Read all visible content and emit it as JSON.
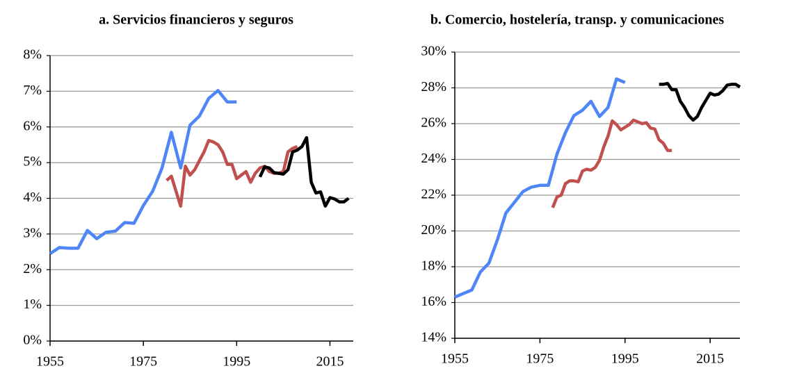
{
  "chart_data": [
    {
      "type": "line",
      "title": "a. Servicios financieros y seguros",
      "xlim": [
        1955,
        2020
      ],
      "xticks": [
        1955,
        1975,
        1995,
        2015
      ],
      "ylim": [
        0,
        8
      ],
      "yticks": [
        {
          "value": 0,
          "label": "0%"
        },
        {
          "value": 1,
          "label": "1%"
        },
        {
          "value": 2,
          "label": "2%"
        },
        {
          "value": 3,
          "label": "3%"
        },
        {
          "value": 4,
          "label": "4%"
        },
        {
          "value": 5,
          "label": "5%"
        },
        {
          "value": 6,
          "label": "6%"
        },
        {
          "value": 7,
          "label": "7%"
        },
        {
          "value": 8,
          "label": "8%"
        }
      ],
      "grid": true,
      "series": [
        {
          "color": "#4f86f7",
          "x": [
            1955,
            1957,
            1959,
            1961,
            1963,
            1965,
            1967,
            1969,
            1971,
            1973,
            1975,
            1977,
            1979,
            1981,
            1983,
            1985,
            1987,
            1989,
            1991,
            1993,
            1995
          ],
          "values": [
            2.45,
            2.62,
            2.6,
            2.6,
            3.1,
            2.87,
            3.05,
            3.08,
            3.32,
            3.3,
            3.8,
            4.2,
            4.85,
            5.85,
            4.85,
            6.05,
            6.3,
            6.8,
            7.02,
            6.7,
            6.7
          ]
        },
        {
          "color": "#c0504d",
          "x": [
            1980,
            1981,
            1982,
            1983,
            1984,
            1985,
            1986,
            1987,
            1988,
            1989,
            1990,
            1991,
            1992,
            1993,
            1994,
            1995,
            1996,
            1997,
            1998,
            1999,
            2000,
            2001,
            2002,
            2003,
            2004,
            2005,
            2006,
            2007,
            2008
          ],
          "values": [
            4.5,
            4.62,
            4.2,
            3.78,
            4.9,
            4.65,
            4.8,
            5.05,
            5.3,
            5.62,
            5.58,
            5.5,
            5.3,
            4.95,
            4.95,
            4.55,
            4.65,
            4.75,
            4.45,
            4.7,
            4.85,
            4.9,
            4.75,
            4.7,
            4.7,
            4.75,
            5.3,
            5.4,
            5.45
          ]
        },
        {
          "color": "#000000",
          "x": [
            2000,
            2001,
            2002,
            2003,
            2004,
            2005,
            2006,
            2007,
            2008,
            2009,
            2010,
            2011,
            2012,
            2013,
            2014,
            2015,
            2016,
            2017,
            2018,
            2019
          ],
          "values": [
            4.6,
            4.88,
            4.85,
            4.72,
            4.7,
            4.68,
            4.8,
            5.3,
            5.35,
            5.45,
            5.7,
            4.45,
            4.15,
            4.18,
            3.78,
            4.02,
            3.98,
            3.9,
            3.9,
            4.0
          ]
        }
      ]
    },
    {
      "type": "line",
      "title": "b. Comercio, hostelería, transp. y comunicaciones",
      "xlim": [
        1955,
        2022
      ],
      "xticks": [
        1955,
        1975,
        1995,
        2015
      ],
      "ylim": [
        14,
        30
      ],
      "yticks": [
        {
          "value": 14,
          "label": "14%"
        },
        {
          "value": 16,
          "label": "16%"
        },
        {
          "value": 18,
          "label": "18%"
        },
        {
          "value": 20,
          "label": "20%"
        },
        {
          "value": 22,
          "label": "22%"
        },
        {
          "value": 24,
          "label": "24%"
        },
        {
          "value": 26,
          "label": "26%"
        },
        {
          "value": 28,
          "label": "28%"
        },
        {
          "value": 30,
          "label": "30%"
        }
      ],
      "grid": true,
      "series": [
        {
          "color": "#4f86f7",
          "x": [
            1955,
            1957,
            1959,
            1961,
            1963,
            1965,
            1967,
            1969,
            1971,
            1973,
            1975,
            1977,
            1979,
            1981,
            1983,
            1985,
            1987,
            1989,
            1991,
            1993,
            1995
          ],
          "values": [
            16.3,
            16.5,
            16.7,
            17.7,
            18.2,
            19.5,
            21.0,
            21.6,
            22.2,
            22.45,
            22.55,
            22.55,
            24.3,
            25.5,
            26.45,
            26.75,
            27.25,
            26.4,
            26.9,
            28.5,
            28.3
          ]
        },
        {
          "color": "#c0504d",
          "x": [
            1978,
            1979,
            1980,
            1981,
            1982,
            1983,
            1984,
            1985,
            1986,
            1987,
            1988,
            1989,
            1990,
            1991,
            1992,
            1993,
            1994,
            1995,
            1996,
            1997,
            1998,
            1999,
            2000,
            2001,
            2002,
            2003,
            2004,
            2005,
            2006
          ],
          "values": [
            21.3,
            21.9,
            22.0,
            22.65,
            22.8,
            22.8,
            22.75,
            23.35,
            23.45,
            23.4,
            23.55,
            23.95,
            24.7,
            25.3,
            26.15,
            25.95,
            25.65,
            25.8,
            25.95,
            26.2,
            26.1,
            26.0,
            26.05,
            25.75,
            25.7,
            25.1,
            24.9,
            24.5,
            24.5
          ]
        },
        {
          "color": "#000000",
          "x": [
            2003,
            2004,
            2005,
            2006,
            2007,
            2008,
            2009,
            2010,
            2011,
            2012,
            2013,
            2014,
            2015,
            2016,
            2017,
            2018,
            2019,
            2020,
            2021,
            2022
          ],
          "values": [
            28.2,
            28.2,
            28.25,
            27.9,
            27.9,
            27.25,
            26.9,
            26.45,
            26.2,
            26.4,
            26.9,
            27.3,
            27.7,
            27.6,
            27.65,
            27.85,
            28.15,
            28.2,
            28.2,
            28.05
          ]
        }
      ]
    }
  ]
}
